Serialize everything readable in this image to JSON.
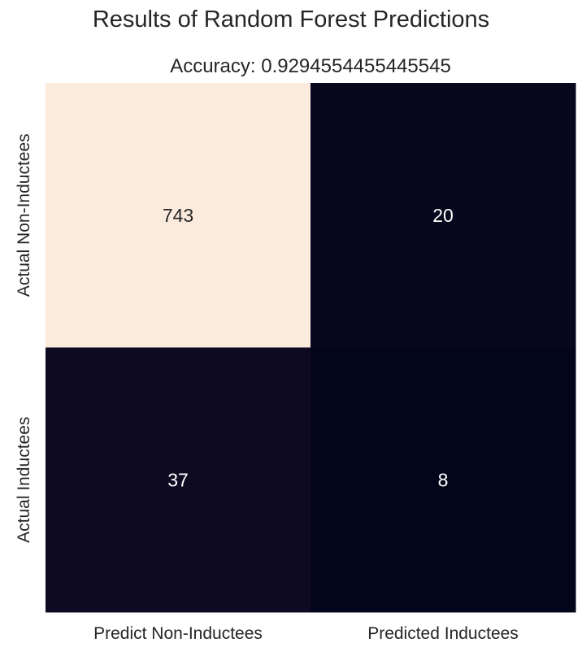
{
  "chart_data": {
    "type": "heatmap",
    "title": "Results of Random Forest Predictions",
    "subtitle": "Accuracy: 0.9294554455445545",
    "xlabel": "",
    "ylabel": "",
    "x_categories": [
      "Predict Non-Inductees",
      "Predicted Inductees"
    ],
    "y_categories": [
      "Actual Non-Inductees",
      "Actual Inductees"
    ],
    "values": [
      [
        743,
        20
      ],
      [
        37,
        8
      ]
    ],
    "colorbar": false,
    "colormap": "rocket",
    "annotations": true
  }
}
